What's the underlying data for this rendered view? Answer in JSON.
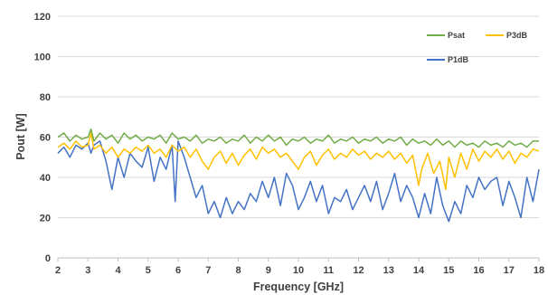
{
  "chart_data": {
    "type": "line",
    "xlabel": "Frequency [GHz]",
    "ylabel": "Pout  [W]",
    "xlim": [
      2,
      18
    ],
    "ylim": [
      0,
      120
    ],
    "xticks": [
      2,
      3,
      4,
      5,
      6,
      7,
      8,
      9,
      10,
      11,
      12,
      13,
      14,
      15,
      16,
      17,
      18
    ],
    "yticks": [
      0,
      20,
      40,
      60,
      80,
      100,
      120
    ],
    "grid": "horizontal",
    "legend_position": "top-right",
    "series": [
      {
        "name": "Psat",
        "color": "#70ad47",
        "x": [
          2.0,
          2.2,
          2.4,
          2.6,
          2.8,
          3.0,
          3.1,
          3.2,
          3.4,
          3.6,
          3.8,
          4.0,
          4.2,
          4.4,
          4.6,
          4.8,
          5.0,
          5.2,
          5.4,
          5.6,
          5.8,
          6.0,
          6.2,
          6.4,
          6.6,
          6.8,
          7.0,
          7.2,
          7.4,
          7.6,
          7.8,
          8.0,
          8.2,
          8.4,
          8.6,
          8.8,
          9.0,
          9.2,
          9.4,
          9.6,
          9.8,
          10.0,
          10.2,
          10.4,
          10.6,
          10.8,
          11.0,
          11.2,
          11.4,
          11.6,
          11.8,
          12.0,
          12.2,
          12.4,
          12.6,
          12.8,
          13.0,
          13.2,
          13.4,
          13.6,
          13.8,
          14.0,
          14.2,
          14.4,
          14.6,
          14.8,
          15.0,
          15.2,
          15.4,
          15.6,
          15.8,
          16.0,
          16.2,
          16.4,
          16.6,
          16.8,
          17.0,
          17.2,
          17.4,
          17.6,
          17.8,
          18.0
        ],
        "values": [
          60,
          62,
          58,
          61,
          59,
          60,
          64,
          58,
          62,
          59,
          61,
          57,
          62,
          59,
          61,
          58,
          60,
          59,
          61,
          57,
          62,
          59,
          60,
          58,
          61,
          57,
          59,
          58,
          60,
          57,
          59,
          58,
          61,
          57,
          60,
          58,
          61,
          58,
          60,
          56,
          59,
          58,
          60,
          57,
          59,
          58,
          61,
          57,
          59,
          58,
          60,
          57,
          59,
          58,
          60,
          57,
          59,
          58,
          60,
          56,
          59,
          57,
          58,
          56,
          59,
          56,
          58,
          55,
          58,
          56,
          57,
          55,
          58,
          56,
          57,
          55,
          58,
          56,
          57,
          55,
          58,
          58
        ]
      },
      {
        "name": "P3dB",
        "color": "#ffc000",
        "x": [
          2.0,
          2.2,
          2.4,
          2.6,
          2.8,
          3.0,
          3.1,
          3.2,
          3.4,
          3.6,
          3.8,
          4.0,
          4.2,
          4.4,
          4.6,
          4.8,
          5.0,
          5.2,
          5.4,
          5.6,
          5.8,
          6.0,
          6.2,
          6.4,
          6.6,
          6.8,
          7.0,
          7.2,
          7.4,
          7.6,
          7.8,
          8.0,
          8.2,
          8.4,
          8.6,
          8.8,
          9.0,
          9.2,
          9.4,
          9.6,
          9.8,
          10.0,
          10.2,
          10.4,
          10.6,
          10.8,
          11.0,
          11.2,
          11.4,
          11.6,
          11.8,
          12.0,
          12.2,
          12.4,
          12.6,
          12.8,
          13.0,
          13.2,
          13.4,
          13.6,
          13.8,
          14.0,
          14.1,
          14.3,
          14.5,
          14.7,
          14.9,
          15.0,
          15.2,
          15.4,
          15.6,
          15.8,
          16.0,
          16.2,
          16.4,
          16.6,
          16.8,
          17.0,
          17.2,
          17.4,
          17.6,
          17.8,
          18.0
        ],
        "values": [
          55,
          57,
          54,
          58,
          55,
          56,
          62,
          54,
          56,
          52,
          55,
          50,
          54,
          52,
          55,
          53,
          56,
          52,
          54,
          50,
          56,
          53,
          55,
          50,
          54,
          48,
          44,
          50,
          53,
          47,
          52,
          46,
          51,
          54,
          49,
          55,
          52,
          54,
          50,
          52,
          48,
          44,
          50,
          53,
          46,
          51,
          54,
          49,
          52,
          50,
          54,
          51,
          53,
          49,
          52,
          50,
          53,
          49,
          52,
          47,
          51,
          36,
          44,
          52,
          42,
          48,
          34,
          50,
          40,
          52,
          44,
          54,
          48,
          53,
          50,
          54,
          49,
          53,
          47,
          52,
          50,
          54,
          53
        ]
      },
      {
        "name": "P1dB",
        "color": "#4472c4",
        "x": [
          2.0,
          2.2,
          2.4,
          2.6,
          2.8,
          3.0,
          3.1,
          3.2,
          3.4,
          3.6,
          3.8,
          4.0,
          4.2,
          4.4,
          4.6,
          4.8,
          5.0,
          5.2,
          5.4,
          5.6,
          5.8,
          5.9,
          6.0,
          6.2,
          6.4,
          6.6,
          6.8,
          7.0,
          7.2,
          7.4,
          7.6,
          7.8,
          8.0,
          8.2,
          8.4,
          8.6,
          8.8,
          9.0,
          9.2,
          9.4,
          9.6,
          9.8,
          10.0,
          10.2,
          10.4,
          10.6,
          10.8,
          11.0,
          11.2,
          11.4,
          11.6,
          11.8,
          12.0,
          12.2,
          12.4,
          12.6,
          12.8,
          13.0,
          13.2,
          13.4,
          13.6,
          13.8,
          14.0,
          14.2,
          14.4,
          14.6,
          14.8,
          15.0,
          15.2,
          15.4,
          15.6,
          15.8,
          16.0,
          16.2,
          16.4,
          16.6,
          16.8,
          17.0,
          17.2,
          17.4,
          17.6,
          17.8,
          18.0
        ],
        "values": [
          52,
          55,
          50,
          56,
          54,
          57,
          52,
          56,
          58,
          48,
          34,
          50,
          40,
          52,
          48,
          45,
          55,
          38,
          50,
          44,
          56,
          28,
          58,
          50,
          40,
          30,
          36,
          22,
          28,
          20,
          30,
          22,
          28,
          24,
          32,
          28,
          38,
          30,
          40,
          26,
          42,
          36,
          24,
          30,
          38,
          28,
          36,
          22,
          30,
          28,
          34,
          24,
          30,
          36,
          28,
          38,
          24,
          32,
          42,
          28,
          36,
          30,
          20,
          32,
          22,
          40,
          26,
          18,
          28,
          22,
          36,
          30,
          40,
          34,
          38,
          40,
          26,
          38,
          30,
          20,
          40,
          28,
          44
        ]
      }
    ]
  }
}
